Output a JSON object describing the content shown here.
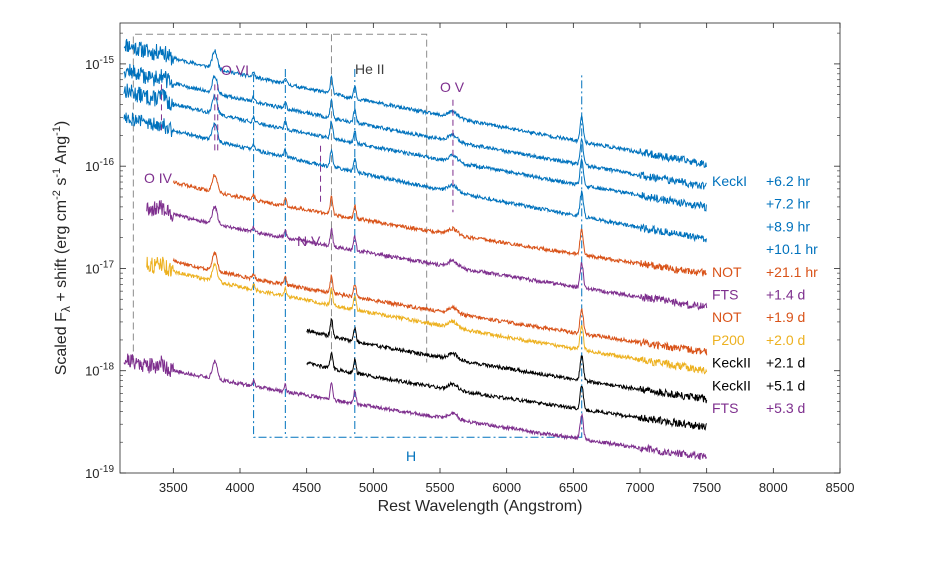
{
  "chart_data": {
    "type": "line",
    "title": "",
    "xlabel": "Rest Wavelength (Angstrom)",
    "ylabel": "Scaled F_λ + shift (erg cm^-2 s^-1 Ang^-1)",
    "ylabel_parts": {
      "prefix": "Scaled F",
      "lambda": "λ",
      "mid": " + shift (erg cm",
      "e1": "-2",
      "s": " s",
      "e2": "-1",
      "ang": " Ang",
      "e3": "-1",
      "close": ")"
    },
    "xlim": [
      3100,
      8500
    ],
    "ylim_log10": [
      -19,
      -14.6
    ],
    "xscale": "linear",
    "yscale": "log",
    "xticks": [
      3500,
      4000,
      4500,
      5000,
      5500,
      6000,
      6500,
      7000,
      7500,
      8000,
      8500
    ],
    "yticks": [
      {
        "value": -15,
        "base": "10",
        "exp": "-15"
      },
      {
        "value": -16,
        "base": "10",
        "exp": "-16"
      },
      {
        "value": -17,
        "base": "10",
        "exp": "-17"
      },
      {
        "value": -18,
        "base": "10",
        "exp": "-18"
      },
      {
        "value": -19,
        "base": "10",
        "exp": "-19"
      }
    ],
    "series": [
      {
        "name": "KeckI +6.2 hr",
        "telescope": "KeckI",
        "epoch": "+6.2 hr",
        "color": "#0072BD",
        "start_log": -14.8,
        "end_log": -15.98,
        "x_start": 3130,
        "x_end": 7500,
        "show_telescope": true,
        "seed": 11
      },
      {
        "name": "KeckI +7.2 hr",
        "telescope": "",
        "epoch": "+7.2 hr",
        "color": "#0072BD",
        "start_log": -15.05,
        "end_log": -16.2,
        "x_start": 3130,
        "x_end": 7500,
        "show_telescope": false,
        "seed": 12
      },
      {
        "name": "KeckI +8.9 hr",
        "telescope": "",
        "epoch": "+8.9 hr",
        "color": "#0072BD",
        "start_log": -15.25,
        "end_log": -16.4,
        "x_start": 3130,
        "x_end": 7500,
        "show_telescope": false,
        "seed": 13
      },
      {
        "name": "KeckI +10.1 hr",
        "telescope": "",
        "epoch": "+10.1 hr",
        "color": "#0072BD",
        "start_log": -15.5,
        "end_log": -16.72,
        "x_start": 3130,
        "x_end": 7500,
        "show_telescope": false,
        "seed": 14
      },
      {
        "name": "NOT +21.1 hr",
        "telescope": "NOT",
        "epoch": "+21.1 hr",
        "color": "#D95319",
        "start_log": -16.15,
        "end_log": -17.05,
        "x_start": 3500,
        "x_end": 7500,
        "show_telescope": true,
        "seed": 15
      },
      {
        "name": "FTS +1.4 d",
        "telescope": "FTS",
        "epoch": "+1.4 d",
        "color": "#7E2F8E",
        "start_log": -16.4,
        "end_log": -17.38,
        "x_start": 3300,
        "x_end": 7500,
        "show_telescope": true,
        "seed": 16
      },
      {
        "name": "NOT +1.9 d",
        "telescope": "NOT",
        "epoch": "+1.9 d",
        "color": "#D95319",
        "start_log": -16.92,
        "end_log": -17.82,
        "x_start": 3500,
        "x_end": 7500,
        "show_telescope": true,
        "seed": 17
      },
      {
        "name": "P200 +2.0 d",
        "telescope": "P200",
        "epoch": "+2.0 d",
        "color": "#EDB120",
        "start_log": -16.95,
        "end_log": -18.0,
        "x_start": 3300,
        "x_end": 7500,
        "show_telescope": true,
        "seed": 18
      },
      {
        "name": "KeckII +2.1 d",
        "telescope": "KeckII",
        "epoch": "+2.1 d",
        "color": "#000000",
        "start_log": -17.6,
        "end_log": -18.28,
        "x_start": 4500,
        "x_end": 7500,
        "show_telescope": true,
        "seed": 19
      },
      {
        "name": "KeckII +5.1 d",
        "telescope": "KeckII",
        "epoch": "+5.1 d",
        "color": "#000000",
        "start_log": -17.92,
        "end_log": -18.55,
        "x_start": 4500,
        "x_end": 7500,
        "show_telescope": true,
        "seed": 20
      },
      {
        "name": "FTS +5.3 d",
        "telescope": "FTS",
        "epoch": "+5.3 d",
        "color": "#7E2F8E",
        "start_log": -17.88,
        "end_log": -18.85,
        "x_start": 3130,
        "x_end": 7500,
        "show_telescope": true,
        "seed": 21
      }
    ],
    "emission_lines": [
      {
        "label": "O VI",
        "wavelength": 3811,
        "color": "#7E2F8E"
      },
      {
        "label": "O IV",
        "wavelength": 3411,
        "color": "#7E2F8E"
      },
      {
        "label": "N V",
        "wavelength": 4604,
        "color": "#7E2F8E"
      },
      {
        "label": "O V",
        "wavelength": 5597,
        "color": "#7E2F8E"
      },
      {
        "label": "He II",
        "wavelength": 4686,
        "color": "#808080"
      },
      {
        "label": "H",
        "wavelength": 6563,
        "color": "#0072BD"
      }
    ],
    "balmer_wavelengths": [
      4102,
      4340,
      4861,
      6563
    ],
    "annotations": [
      {
        "label": "O VI",
        "color": "#7E2F8E"
      },
      {
        "label": "O IV",
        "color": "#7E2F8E"
      },
      {
        "label": "N V",
        "color": "#7E2F8E"
      },
      {
        "label": "O V",
        "color": "#7E2F8E"
      },
      {
        "label": "He II",
        "color": "#404040"
      },
      {
        "label": "H",
        "color": "#0072BD"
      }
    ],
    "grid": false,
    "legend": "right-side inline labels"
  }
}
